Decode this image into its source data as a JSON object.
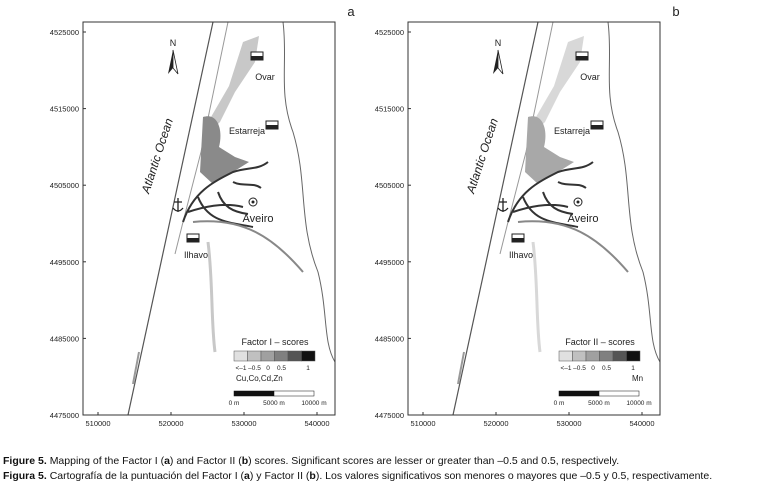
{
  "panels": [
    {
      "label": "a",
      "legend_title": "Factor I – scores",
      "legend_ticks": [
        "<–1",
        "–0.5",
        "0",
        "0.5",
        "1"
      ],
      "legend_variables": "Cu,Co,Cd,Zn"
    },
    {
      "label": "b",
      "legend_title": "Factor II – scores",
      "legend_ticks": [
        "<–1",
        "–0.5",
        "0",
        "0.5",
        "1"
      ],
      "legend_variables": "Mn"
    }
  ],
  "map": {
    "yticks": [
      4525000,
      4515000,
      4505000,
      4495000,
      4485000,
      4475000
    ],
    "xticks": [
      510000,
      520000,
      530000,
      540000
    ],
    "north": "N",
    "ocean": "Atlantic Ocean",
    "places": [
      "Ovar",
      "Estarreja",
      "Aveiro",
      "Ilhavo"
    ],
    "scale": [
      "0 m",
      "5000 m",
      "10000 m"
    ]
  },
  "caption": [
    {
      "label": "Figure 5.",
      "segments": [
        "Mapping of the Factor I (",
        "a",
        ") and Factor II (",
        "b",
        ") scores. Significant scores are lesser or greater than –0.5 and 0.5, respectively."
      ]
    },
    {
      "label": "Figura 5.",
      "segments": [
        "Cartografía de la puntuación del Factor I (",
        "a",
        ") y Factor II (",
        "b",
        "). Los valores significativos son menores o mayores que –0.5 y 0.5, respectivamente."
      ]
    }
  ]
}
